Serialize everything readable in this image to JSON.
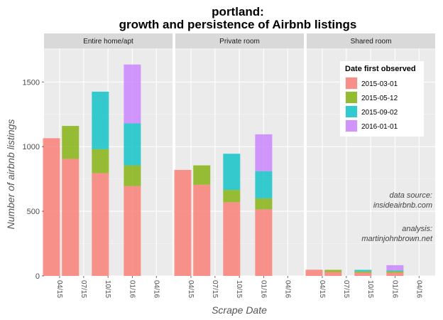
{
  "chart_data": {
    "type": "bar",
    "stacked": true,
    "title_line1": "portland:",
    "title_line2": "growth and persistence of Airbnb listings",
    "xlabel": "Scrape Date",
    "ylabel": "Number of airbnb listings",
    "ylim": [
      0,
      1760
    ],
    "yticks": [
      0,
      500,
      1000,
      1500
    ],
    "xticks": [
      "04/15",
      "07/15",
      "10/15",
      "01/16",
      "04/16"
    ],
    "panels": [
      "Entire home/apt",
      "Private room",
      "Shared room"
    ],
    "scrape_dates": [
      "2015-03-01",
      "2015-05-12",
      "2015-09-02",
      "2016-01-01"
    ],
    "legend": {
      "title": "Date first observed",
      "entries": [
        "2015-03-01",
        "2015-05-12",
        "2015-09-02",
        "2016-01-01"
      ],
      "placement": "top-right"
    },
    "series": [
      {
        "name": "2015-03-01",
        "color": "#F8766D",
        "values": [
          [
            1065,
            905,
            795,
            695
          ],
          [
            820,
            705,
            570,
            515
          ],
          [
            48,
            30,
            25,
            25
          ]
        ]
      },
      {
        "name": "2015-05-12",
        "color": "#7CAE00",
        "values": [
          [
            0,
            255,
            185,
            160
          ],
          [
            0,
            150,
            95,
            85
          ],
          [
            0,
            17,
            10,
            10
          ]
        ]
      },
      {
        "name": "2015-09-02",
        "color": "#00BFC4",
        "values": [
          [
            0,
            0,
            445,
            325
          ],
          [
            0,
            0,
            280,
            210
          ],
          [
            0,
            0,
            12,
            8
          ]
        ]
      },
      {
        "name": "2016-01-01",
        "color": "#C77CFF",
        "values": [
          [
            0,
            0,
            0,
            455
          ],
          [
            0,
            0,
            0,
            285
          ],
          [
            0,
            0,
            0,
            40
          ]
        ]
      }
    ],
    "annotations": {
      "line1": "data source:",
      "line2": "insideairbnb.com",
      "line3": "analysis:",
      "line4": "martinjohnbrown.net"
    },
    "grid": true
  }
}
